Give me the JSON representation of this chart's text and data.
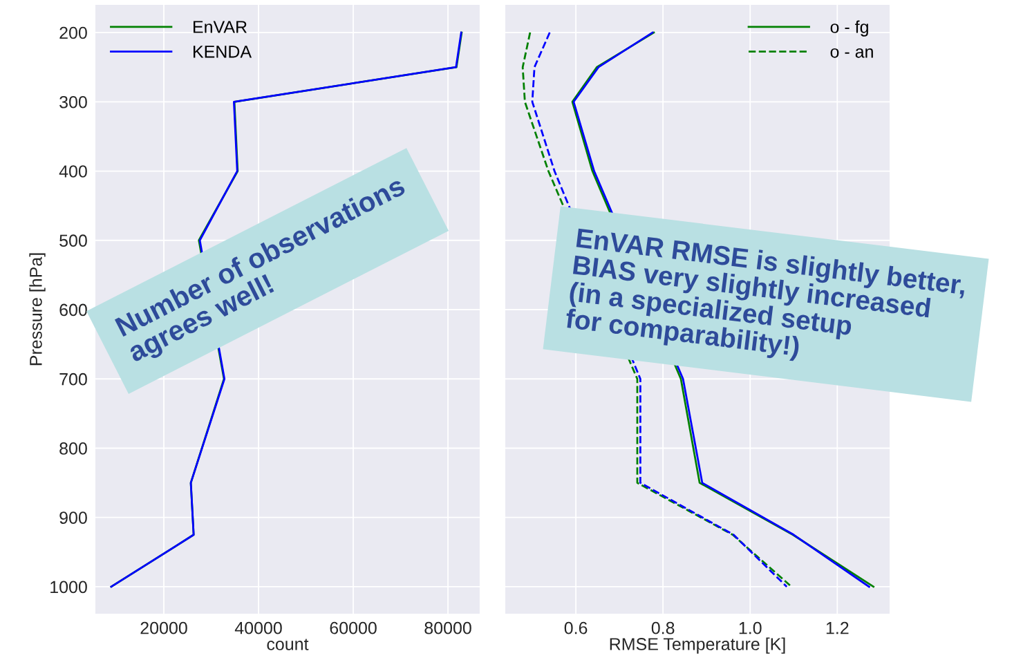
{
  "chart_data": [
    {
      "type": "line",
      "xlabel": "count",
      "ylabel": "Pressure [hPa]",
      "xlim": [
        5540,
        86700
      ],
      "xticks": [
        20000,
        40000,
        60000,
        80000
      ],
      "ylim": [
        1039,
        160
      ],
      "yticks": [
        200,
        300,
        400,
        500,
        600,
        700,
        800,
        900,
        1000
      ],
      "grid": true,
      "legend": "top left",
      "line_style": "solid",
      "marker": "none",
      "annotations": [
        "Number of observations\nagrees well!"
      ],
      "series": [
        {
          "name": "EnVAR",
          "color": "#008000",
          "x": [
            82900,
            81800,
            34900,
            35600,
            27400,
            32700,
            25700,
            26300,
            8900
          ],
          "values": [
            200,
            250,
            300,
            400,
            500,
            700,
            850,
            925,
            1000
          ]
        },
        {
          "name": "KENDA",
          "color": "#0000ff",
          "x": [
            82800,
            81700,
            34800,
            35500,
            27600,
            32800,
            25700,
            26300,
            8900
          ],
          "values": [
            200,
            250,
            300,
            400,
            500,
            700,
            850,
            925,
            1000
          ]
        }
      ]
    },
    {
      "type": "line",
      "xlabel": "RMSE Temperature [K]",
      "xlim": [
        0.438,
        1.32
      ],
      "xticks": [
        0.6,
        0.8,
        {
          "value": 1.0,
          "label": "1.0"
        },
        1.2
      ],
      "ylim": [
        1039,
        160
      ],
      "yticks": [
        200,
        300,
        400,
        500,
        600,
        700,
        800,
        900,
        1000
      ],
      "tick_labels": "x",
      "grid": true,
      "legend": "top right",
      "marker": "none",
      "annotations": [
        "EnVAR RMSE is slightly better,\nBIAS very slightly increased\n(in a specialized setup\nfor comparability!)"
      ],
      "series": [
        {
          "name": "o - fg",
          "color": "#008000",
          "line_style": "solid",
          "x": [
            0.779,
            0.648,
            0.592,
            0.638,
            0.841,
            0.884,
            1.098,
            1.283
          ],
          "values": [
            200,
            250,
            300,
            400,
            700,
            850,
            925,
            1000
          ]
        },
        {
          "color": "#0000ff",
          "line_style": "solid",
          "x": [
            0.776,
            0.652,
            0.595,
            0.642,
            0.846,
            0.89,
            1.1,
            1.273
          ],
          "values": [
            200,
            250,
            300,
            400,
            700,
            850,
            925,
            1000
          ]
        },
        {
          "name": "o - an",
          "color": "#008000",
          "line_style": "dashed",
          "x": [
            0.495,
            0.478,
            0.483,
            0.537,
            0.741,
            0.741,
            0.96,
            1.095
          ],
          "values": [
            200,
            250,
            300,
            400,
            700,
            850,
            925,
            1000
          ]
        },
        {
          "color": "#0000ff",
          "line_style": "dashed",
          "x": [
            0.54,
            0.505,
            0.5,
            0.551,
            0.748,
            0.748,
            0.962,
            1.084
          ],
          "values": [
            200,
            250,
            300,
            400,
            700,
            850,
            925,
            1000
          ]
        }
      ]
    }
  ]
}
